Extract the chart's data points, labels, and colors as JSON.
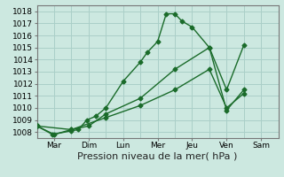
{
  "background_color": "#cce8e0",
  "grid_color": "#aacfc8",
  "line_color": "#1a6b2a",
  "x_labels": [
    "Mar",
    "Dim",
    "Lun",
    "Mer",
    "Jeu",
    "Ven",
    "Sam"
  ],
  "ylim": [
    1007.5,
    1018.5
  ],
  "yticks": [
    1008,
    1009,
    1010,
    1011,
    1012,
    1013,
    1014,
    1015,
    1016,
    1017,
    1018
  ],
  "line1_x": [
    0.0,
    0.45,
    1.0,
    1.2,
    1.45,
    1.7,
    2.0,
    2.5,
    3.0,
    3.2,
    3.5,
    3.75,
    4.0,
    4.2,
    4.5,
    5.0,
    5.5,
    6.0
  ],
  "line1_y": [
    1008.5,
    1007.8,
    1008.1,
    1008.2,
    1009.0,
    1009.3,
    1010.0,
    1012.2,
    1013.8,
    1014.6,
    1015.5,
    1017.8,
    1017.8,
    1017.2,
    1016.7,
    1015.0,
    1011.5,
    1015.2
  ],
  "line2_x": [
    0.0,
    0.5,
    1.0,
    1.5,
    2.0,
    3.0,
    4.0,
    5.0,
    5.5,
    6.0
  ],
  "line2_y": [
    1008.5,
    1007.8,
    1008.2,
    1008.5,
    1009.5,
    1010.8,
    1013.2,
    1015.0,
    1009.8,
    1011.5
  ],
  "line3_x": [
    0.0,
    1.0,
    2.0,
    3.0,
    4.0,
    5.0,
    5.5,
    6.0
  ],
  "line3_y": [
    1008.5,
    1008.2,
    1009.2,
    1010.2,
    1011.5,
    1013.2,
    1010.0,
    1011.2
  ],
  "xlabel": "Pression niveau de la mer( hPa )",
  "xlabel_fontsize": 8,
  "tick_fontsize": 6.5
}
